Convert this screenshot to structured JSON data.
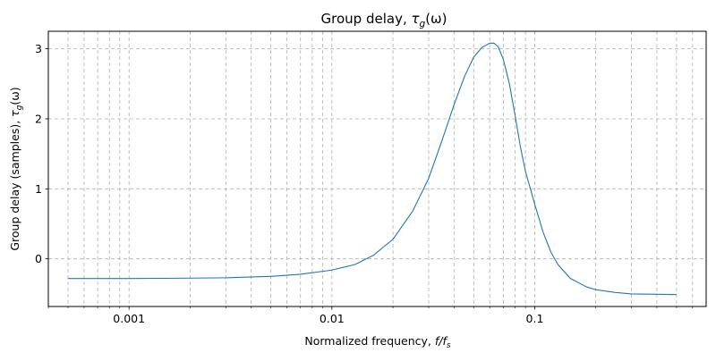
{
  "chart_data": {
    "type": "line",
    "title": "Group delay, τ_g(ω)",
    "title_parts": {
      "prefix": "Group delay, ",
      "sym": "τ",
      "sub": "g",
      "suffix": "(ω)"
    },
    "xlabel": "Normalized frequency, f/f_s",
    "xlabel_parts": {
      "prefix": "Normalized frequency, ",
      "sym": "f/f",
      "sub": "s"
    },
    "ylabel": "Group delay (samples), τ_g(ω)",
    "ylabel_parts": {
      "prefix": "Group delay (samples), ",
      "sym": "τ",
      "sub": "g",
      "suffix": "(ω)"
    },
    "x_scale": "log",
    "xlim": [
      0.0004,
      0.7
    ],
    "ylim": [
      -0.68,
      3.25
    ],
    "x_ticks": [
      0.001,
      0.01,
      0.1
    ],
    "x_tick_labels": [
      "0.001",
      "0.01",
      "0.1"
    ],
    "y_ticks": [
      0,
      1,
      2,
      3
    ],
    "y_tick_labels": [
      "0",
      "1",
      "2",
      "3"
    ],
    "grid": true,
    "grid_minor": true,
    "line_color": "#1f77b4",
    "series": [
      {
        "x": [
          0.0005,
          0.0007,
          0.001,
          0.0015,
          0.002,
          0.003,
          0.005,
          0.007,
          0.01,
          0.013,
          0.016,
          0.02,
          0.025,
          0.03,
          0.035,
          0.04,
          0.045,
          0.05,
          0.055,
          0.06,
          0.063,
          0.066,
          0.07,
          0.075,
          0.08,
          0.085,
          0.09,
          0.1,
          0.11,
          0.12,
          0.13,
          0.15,
          0.18,
          0.2,
          0.25,
          0.3,
          0.4,
          0.5
        ],
        "y": [
          -0.28,
          -0.28,
          -0.28,
          -0.278,
          -0.275,
          -0.27,
          -0.25,
          -0.22,
          -0.16,
          -0.08,
          0.05,
          0.28,
          0.68,
          1.15,
          1.7,
          2.2,
          2.6,
          2.88,
          3.02,
          3.08,
          3.08,
          3.03,
          2.85,
          2.5,
          2.05,
          1.6,
          1.25,
          0.78,
          0.38,
          0.1,
          -0.08,
          -0.28,
          -0.4,
          -0.44,
          -0.48,
          -0.5,
          -0.505,
          -0.51
        ]
      }
    ]
  }
}
